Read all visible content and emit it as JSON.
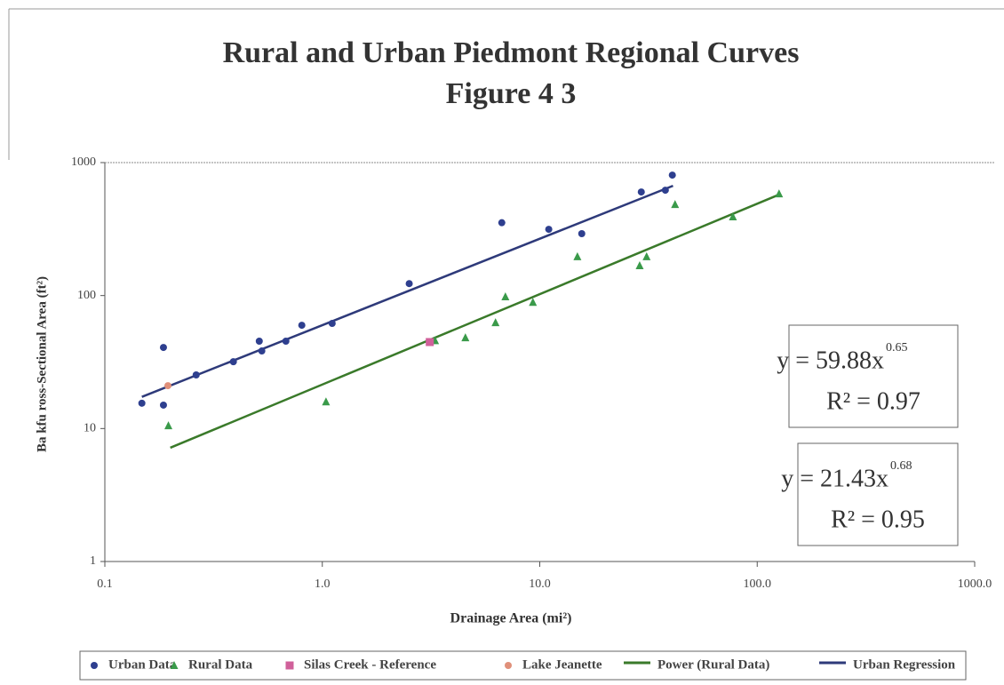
{
  "chart_data": {
    "type": "scatter",
    "title": "Rural and Urban Piedmont Regional Curves",
    "subtitle": "Figure 4 3",
    "x_label": "Drainage Area (mi²)",
    "y_label": "Ba kfu ross-Sectional Area (ft²)",
    "xscale": "log",
    "yscale": "log",
    "xlim": [
      0.1,
      1000
    ],
    "ylim": [
      1,
      1000
    ],
    "xticks": [
      {
        "value": 0.1,
        "label": "0.1"
      },
      {
        "value": 1,
        "label": "1.0"
      },
      {
        "value": 10,
        "label": "10.0"
      },
      {
        "value": 100,
        "label": "100.0"
      },
      {
        "value": 1000,
        "label": "1000.0"
      }
    ],
    "yticks": [
      1,
      10,
      100,
      1000
    ],
    "series": [
      {
        "name": "Urban Data",
        "marker": "circle",
        "color": "#2e3f8f",
        "x": [
          0.148,
          0.186,
          0.186,
          0.263,
          0.39,
          0.513,
          0.527,
          0.68,
          0.805,
          1.11,
          2.51,
          6.69,
          11.0,
          15.6,
          29.3,
          37.8,
          40.7
        ],
        "values": [
          15.5,
          40.7,
          15.0,
          25.3,
          31.8,
          45.4,
          38.3,
          45.4,
          59.8,
          61.7,
          123,
          353,
          315,
          292,
          601,
          620,
          805
        ]
      },
      {
        "name": "Rural Data",
        "marker": "triangle",
        "color": "#3a9a4a",
        "x": [
          0.196,
          1.04,
          3.3,
          4.55,
          6.26,
          6.95,
          9.3,
          14.9,
          28.8,
          31,
          41.9,
          77.3,
          126
        ],
        "values": [
          10.5,
          15.9,
          45.8,
          48.2,
          62.6,
          98,
          89,
          196,
          168,
          196,
          484,
          391,
          583
        ]
      },
      {
        "name": "Silas Creek - Reference",
        "marker": "square",
        "color": "#d0609a",
        "x": [
          3.12
        ],
        "values": [
          44.7
        ]
      },
      {
        "name": "Lake Jeanette",
        "marker": "circle",
        "color": "#e0907a",
        "x": [
          0.195
        ],
        "values": [
          21.0
        ]
      },
      {
        "name": "Power (Rural Data)",
        "marker": "line",
        "color": "#3a7a2a",
        "x": [
          0.2,
          126
        ],
        "values": [
          7.17,
          574
        ]
      },
      {
        "name": "Urban Regression",
        "marker": "line",
        "color": "#2e3a7a",
        "x": [
          0.148,
          41
        ],
        "values": [
          17.3,
          669
        ]
      }
    ],
    "annotations": [
      {
        "text": "y = 59.88x",
        "exponent": "0.65",
        "r2": "R² = 0.97",
        "color": "#2e3a6a"
      },
      {
        "text": "y = 21.43x",
        "exponent": "0.68",
        "r2": "R² = 0.95",
        "color": "#3a7a3a"
      }
    ]
  }
}
